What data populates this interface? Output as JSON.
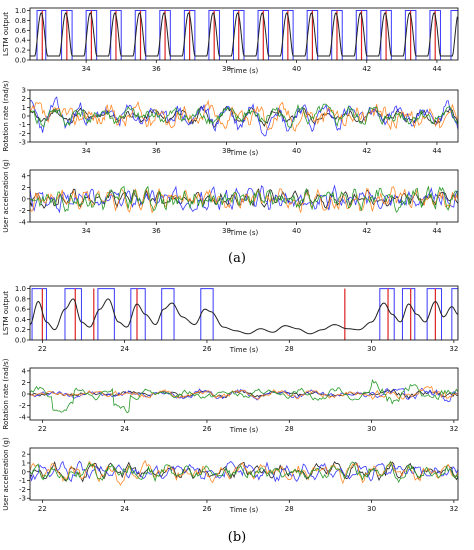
{
  "colors": {
    "black": "#222222",
    "blue": "#3a3aff",
    "red": "#dd2222",
    "orange": "#ff8a2a",
    "green": "#2a9a2a"
  },
  "chart_data": [
    {
      "type": "line",
      "group": "a",
      "caption": "(a)",
      "xlim": [
        32.4,
        44.6
      ],
      "xticks": [
        34,
        36,
        38,
        40,
        42,
        44
      ],
      "panels": [
        {
          "kind": "lstm",
          "ylabel": "LSTM output",
          "xlabel": "Time (s)",
          "ylim": [
            0,
            1.05
          ],
          "yticks": [
            "0.0",
            "0.2",
            "0.4",
            "0.6",
            "0.8",
            "1.0"
          ],
          "ytick_values": [
            0,
            0.2,
            0.4,
            0.6,
            0.8,
            1.0
          ],
          "blue_intervals": [
            [
              32.6,
              32.85
            ],
            [
              33.3,
              33.6
            ],
            [
              34.0,
              34.3
            ],
            [
              34.7,
              35.0
            ],
            [
              35.4,
              35.7
            ],
            [
              36.1,
              36.4
            ],
            [
              36.8,
              37.1
            ],
            [
              37.5,
              37.8
            ],
            [
              38.2,
              38.5
            ],
            [
              38.9,
              39.2
            ],
            [
              39.6,
              39.9
            ],
            [
              40.3,
              40.6
            ],
            [
              41.0,
              41.3
            ],
            [
              41.7,
              42.0
            ],
            [
              42.4,
              42.7
            ],
            [
              43.1,
              43.4
            ],
            [
              43.8,
              44.1
            ],
            [
              44.4,
              44.6
            ]
          ],
          "red_spikes": [
            32.75,
            33.45,
            34.15,
            34.85,
            35.55,
            36.25,
            36.95,
            37.65,
            38.35,
            39.05,
            39.75,
            40.45,
            41.15,
            41.85,
            42.55,
            43.25,
            43.95
          ],
          "black_curve": {
            "period": 0.7,
            "phase": 32.72,
            "peak": 0.95,
            "floor": 0.08
          }
        },
        {
          "kind": "signal",
          "ylabel": "Rotation rate (rad/s)",
          "xlabel": "Time (s)",
          "ylim": [
            -3,
            3
          ],
          "yticks": [
            "-3",
            "-2",
            "-1",
            "0",
            "1",
            "2",
            "3"
          ],
          "ytick_values": [
            -3,
            -2,
            -1,
            0,
            1,
            2,
            3
          ],
          "series": [
            {
              "color_key": "black",
              "amp": 1.0,
              "freq": 1.43,
              "noise": 0.4,
              "seed": 11
            },
            {
              "color_key": "blue",
              "amp": 1.3,
              "freq": 1.43,
              "noise": 0.7,
              "seed": 23
            },
            {
              "color_key": "orange",
              "amp": 1.1,
              "freq": 1.43,
              "noise": 0.8,
              "seed": 37
            },
            {
              "color_key": "green",
              "amp": 0.8,
              "freq": 1.43,
              "noise": 0.6,
              "seed": 41
            }
          ]
        },
        {
          "kind": "signal",
          "ylabel": "User acceleration (g)",
          "xlabel": "Time (s)",
          "ylim": [
            -4,
            5
          ],
          "yticks": [
            "-4",
            "-2",
            "0",
            "2",
            "4"
          ],
          "ytick_values": [
            -4,
            -2,
            0,
            2,
            4
          ],
          "series": [
            {
              "color_key": "black",
              "amp": 1.0,
              "freq": 2.86,
              "noise": 0.7,
              "seed": 53
            },
            {
              "color_key": "blue",
              "amp": 1.3,
              "freq": 2.86,
              "noise": 1.0,
              "seed": 67
            },
            {
              "color_key": "orange",
              "amp": 1.2,
              "freq": 2.86,
              "noise": 1.0,
              "seed": 71
            },
            {
              "color_key": "green",
              "amp": 1.0,
              "freq": 2.86,
              "noise": 1.1,
              "seed": 83
            }
          ]
        }
      ]
    },
    {
      "type": "line",
      "group": "b",
      "caption": "(b)",
      "xlim": [
        21.7,
        32.1
      ],
      "xticks": [
        22,
        24,
        26,
        28,
        30,
        32
      ],
      "panels": [
        {
          "kind": "lstm",
          "ylabel": "LSTM output",
          "xlabel": "Time (s)",
          "ylim": [
            0,
            1.05
          ],
          "yticks": [
            "0.0",
            "0.2",
            "0.4",
            "0.6",
            "0.8",
            "1.0"
          ],
          "ytick_values": [
            0,
            0.2,
            0.4,
            0.6,
            0.8,
            1.0
          ],
          "blue_intervals": [
            [
              21.75,
              22.1
            ],
            [
              22.55,
              22.95
            ],
            [
              23.35,
              23.75
            ],
            [
              24.15,
              24.5
            ],
            [
              24.9,
              25.2
            ],
            [
              25.85,
              26.15
            ],
            [
              30.2,
              30.55
            ],
            [
              30.75,
              31.05
            ],
            [
              31.35,
              31.7
            ],
            [
              31.95,
              32.1
            ]
          ],
          "red_spikes": [
            22.0,
            22.8,
            23.25,
            24.3,
            29.35,
            30.4,
            30.95,
            31.55
          ],
          "black_curve": {
            "points": [
              [
                21.7,
                0.3
              ],
              [
                21.9,
                0.75
              ],
              [
                22.1,
                0.35
              ],
              [
                22.3,
                0.2
              ],
              [
                22.55,
                0.6
              ],
              [
                22.75,
                0.8
              ],
              [
                22.95,
                0.35
              ],
              [
                23.15,
                0.25
              ],
              [
                23.4,
                0.6
              ],
              [
                23.6,
                0.8
              ],
              [
                23.85,
                0.35
              ],
              [
                24.05,
                0.25
              ],
              [
                24.3,
                0.7
              ],
              [
                24.5,
                0.5
              ],
              [
                24.75,
                0.3
              ],
              [
                24.95,
                0.6
              ],
              [
                25.15,
                0.72
              ],
              [
                25.4,
                0.45
              ],
              [
                25.7,
                0.3
              ],
              [
                25.95,
                0.6
              ],
              [
                26.1,
                0.55
              ],
              [
                26.4,
                0.25
              ],
              [
                26.7,
                0.18
              ],
              [
                27.0,
                0.12
              ],
              [
                27.3,
                0.22
              ],
              [
                27.6,
                0.15
              ],
              [
                27.9,
                0.28
              ],
              [
                28.2,
                0.22
              ],
              [
                28.5,
                0.12
              ],
              [
                28.8,
                0.2
              ],
              [
                29.1,
                0.3
              ],
              [
                29.4,
                0.22
              ],
              [
                29.7,
                0.2
              ],
              [
                30.0,
                0.35
              ],
              [
                30.3,
                0.72
              ],
              [
                30.5,
                0.5
              ],
              [
                30.7,
                0.35
              ],
              [
                30.9,
                0.7
              ],
              [
                31.1,
                0.5
              ],
              [
                31.3,
                0.35
              ],
              [
                31.55,
                0.75
              ],
              [
                31.75,
                0.45
              ],
              [
                31.95,
                0.65
              ],
              [
                32.1,
                0.5
              ]
            ]
          }
        },
        {
          "kind": "signal",
          "ylabel": "Rotation rate (rad/s)",
          "xlabel": "Time (s)",
          "ylim": [
            -4.5,
            4.5
          ],
          "yticks": [
            "-4",
            "-2",
            "0",
            "2",
            "4"
          ],
          "ytick_values": [
            -4,
            -2,
            0,
            2,
            4
          ],
          "series": [
            {
              "color_key": "black",
              "amp": 0.4,
              "freq": 1.1,
              "noise": 0.25,
              "seed": 91
            },
            {
              "color_key": "blue",
              "amp": 0.6,
              "freq": 1.1,
              "noise": 0.35,
              "seed": 97
            },
            {
              "color_key": "orange",
              "amp": 0.5,
              "freq": 1.1,
              "noise": 0.35,
              "seed": 103
            },
            {
              "color_key": "green",
              "amp": 0.9,
              "freq": 1.1,
              "noise": 0.4,
              "seed": 107
            }
          ]
        },
        {
          "kind": "signal",
          "ylabel": "User acceleration (g)",
          "xlabel": "Time (s)",
          "ylim": [
            -3.2,
            2.7
          ],
          "yticks": [
            "-3",
            "-2",
            "-1",
            "0",
            "1",
            "2"
          ],
          "ytick_values": [
            -3,
            -2,
            -1,
            0,
            1,
            2
          ],
          "series": [
            {
              "color_key": "black",
              "amp": 0.6,
              "freq": 2.2,
              "noise": 0.45,
              "seed": 113
            },
            {
              "color_key": "blue",
              "amp": 0.7,
              "freq": 2.2,
              "noise": 0.5,
              "seed": 127
            },
            {
              "color_key": "orange",
              "amp": 0.7,
              "freq": 2.2,
              "noise": 0.55,
              "seed": 131
            },
            {
              "color_key": "green",
              "amp": 0.5,
              "freq": 2.2,
              "noise": 0.5,
              "seed": 137
            }
          ]
        }
      ]
    }
  ]
}
